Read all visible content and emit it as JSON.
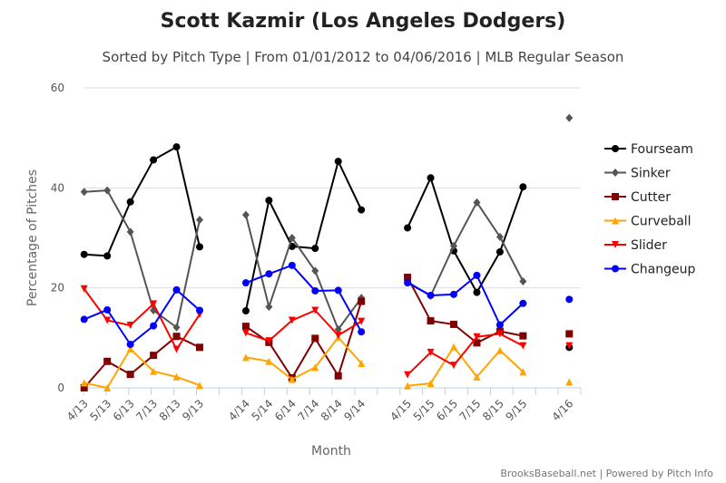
{
  "chart_data": {
    "type": "line",
    "title": "Scott Kazmir (Los Angeles Dodgers)",
    "subtitle": "Sorted by Pitch Type | From 01/01/2012 to 04/06/2016 | MLB Regular Season",
    "xlabel": "Month",
    "ylabel": "Percentage of Pitches",
    "ylim": [
      0,
      60
    ],
    "yticks": [
      0,
      20,
      40,
      60
    ],
    "categories": [
      "4/13",
      "5/13",
      "6/13",
      "7/13",
      "8/13",
      "9/13",
      "",
      "4/14",
      "5/14",
      "6/14",
      "7/14",
      "8/14",
      "9/14",
      "",
      "4/15",
      "5/15",
      "6/15",
      "7/15",
      "8/15",
      "9/15",
      "",
      "4/16"
    ],
    "legend_position": "right",
    "series": [
      {
        "name": "Fourseam",
        "color": "#000000",
        "marker": "circle",
        "values": [
          26.7,
          26.4,
          37.2,
          45.6,
          48.2,
          28.2,
          null,
          15.4,
          37.5,
          28.3,
          27.9,
          45.3,
          35.6,
          null,
          32.0,
          42.0,
          27.4,
          19.1,
          27.2,
          40.2,
          null,
          8.1
        ]
      },
      {
        "name": "Sinker",
        "color": "#555555",
        "marker": "diamond",
        "values": [
          39.2,
          39.5,
          31.2,
          15.5,
          12.1,
          33.6,
          null,
          34.6,
          16.2,
          30.0,
          23.4,
          11.7,
          18.0,
          null,
          21.2,
          18.4,
          28.4,
          37.1,
          30.2,
          21.3,
          null,
          54.0
        ]
      },
      {
        "name": "Cutter",
        "color": "#800000",
        "marker": "square",
        "values": [
          0.0,
          5.3,
          2.7,
          6.5,
          10.3,
          8.1,
          null,
          12.3,
          9.1,
          2.0,
          9.9,
          2.4,
          17.3,
          null,
          22.1,
          13.4,
          12.7,
          9.0,
          11.3,
          10.4,
          null,
          10.8
        ]
      },
      {
        "name": "Curveball",
        "color": "#ffa500",
        "marker": "triangle",
        "values": [
          1.0,
          0.0,
          7.8,
          3.3,
          2.2,
          0.5,
          null,
          6.1,
          5.3,
          1.7,
          4.1,
          10.1,
          4.9,
          null,
          0.4,
          0.9,
          8.2,
          2.2,
          7.5,
          3.2,
          null,
          1.2
        ]
      },
      {
        "name": "Slider",
        "color": "#ff0000",
        "marker": "triangle-down",
        "values": [
          19.8,
          13.5,
          12.5,
          16.8,
          7.7,
          14.7,
          null,
          11.0,
          9.4,
          13.5,
          15.5,
          10.5,
          13.3,
          null,
          2.6,
          7.1,
          4.5,
          10.2,
          10.8,
          8.4,
          null,
          8.4
        ]
      },
      {
        "name": "Changeup",
        "color": "#0000ff",
        "marker": "circle",
        "values": [
          13.7,
          15.6,
          8.7,
          12.4,
          19.6,
          15.5,
          null,
          21.0,
          22.8,
          24.5,
          19.4,
          19.5,
          11.2,
          null,
          21.0,
          18.5,
          18.7,
          22.5,
          12.6,
          16.9,
          null,
          17.7
        ]
      }
    ]
  },
  "credits": "BrooksBaseball.net | Powered by Pitch Info"
}
